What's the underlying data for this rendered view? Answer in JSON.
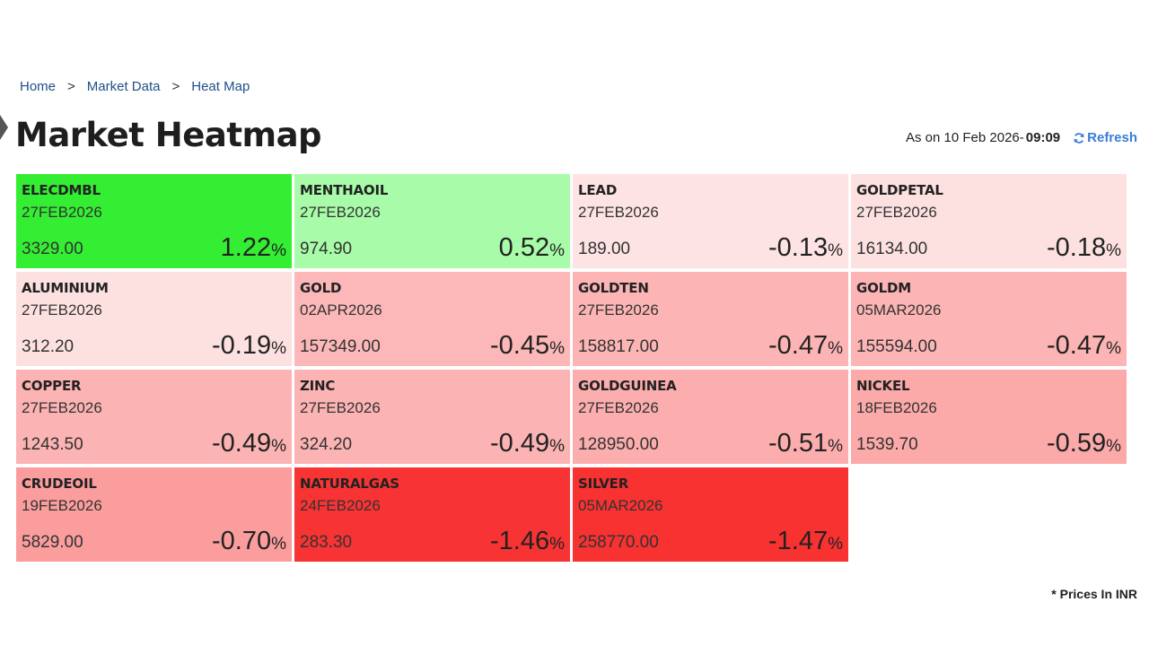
{
  "breadcrumb": {
    "items": [
      "Home",
      "Market Data",
      "Heat Map"
    ],
    "separator": ">"
  },
  "header": {
    "title": "Market Heatmap",
    "as_on_label": "As on 10 Feb 2026-",
    "as_on_time": "09:09",
    "refresh_label": "Refresh"
  },
  "footnote": "* Prices In INR",
  "tiles": [
    {
      "symbol": "ELECDMBL",
      "expiry": "27FEB2026",
      "price": "3329.00",
      "change": "1.22",
      "color": "#33ee33"
    },
    {
      "symbol": "MENTHAOIL",
      "expiry": "27FEB2026",
      "price": "974.90",
      "change": "0.52",
      "color": "#a8fba8"
    },
    {
      "symbol": "LEAD",
      "expiry": "27FEB2026",
      "price": "189.00",
      "change": "-0.13",
      "color": "#fde3e3"
    },
    {
      "symbol": "GOLDPETAL",
      "expiry": "27FEB2026",
      "price": "16134.00",
      "change": "-0.18",
      "color": "#fde1e1"
    },
    {
      "symbol": "ALUMINIUM",
      "expiry": "27FEB2026",
      "price": "312.20",
      "change": "-0.19",
      "color": "#fde0e0"
    },
    {
      "symbol": "GOLD",
      "expiry": "02APR2026",
      "price": "157349.00",
      "change": "-0.45",
      "color": "#fcb8b8"
    },
    {
      "symbol": "GOLDTEN",
      "expiry": "27FEB2026",
      "price": "158817.00",
      "change": "-0.47",
      "color": "#fcb4b4"
    },
    {
      "symbol": "GOLDM",
      "expiry": "05MAR2026",
      "price": "155594.00",
      "change": "-0.47",
      "color": "#fcb4b4"
    },
    {
      "symbol": "COPPER",
      "expiry": "27FEB2026",
      "price": "1243.50",
      "change": "-0.49",
      "color": "#fcb3b3"
    },
    {
      "symbol": "ZINC",
      "expiry": "27FEB2026",
      "price": "324.20",
      "change": "-0.49",
      "color": "#fcb3b3"
    },
    {
      "symbol": "GOLDGUINEA",
      "expiry": "27FEB2026",
      "price": "128950.00",
      "change": "-0.51",
      "color": "#fcadad"
    },
    {
      "symbol": "NICKEL",
      "expiry": "18FEB2026",
      "price": "1539.70",
      "change": "-0.59",
      "color": "#fba9a9"
    },
    {
      "symbol": "CRUDEOIL",
      "expiry": "19FEB2026",
      "price": "5829.00",
      "change": "-0.70",
      "color": "#fb9d9d"
    },
    {
      "symbol": "NATURALGAS",
      "expiry": "24FEB2026",
      "price": "283.30",
      "change": "-1.46",
      "color": "#f83333"
    },
    {
      "symbol": "SILVER",
      "expiry": "05MAR2026",
      "price": "258770.00",
      "change": "-1.47",
      "color": "#f83131"
    }
  ],
  "percent_sign": "%"
}
